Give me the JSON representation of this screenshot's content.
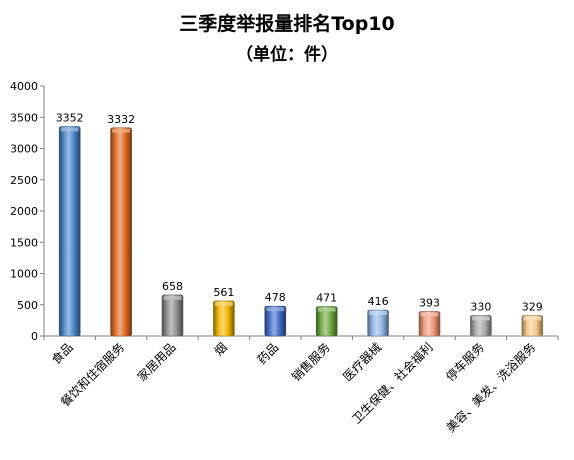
{
  "chart_data": {
    "type": "bar",
    "title": "三季度举报量排名Top10",
    "subtitle": "（单位：件）",
    "xlabel": "",
    "ylabel": "",
    "ylim": [
      0,
      4000
    ],
    "yticks": [
      0,
      500,
      1000,
      1500,
      2000,
      2500,
      3000,
      3500,
      4000
    ],
    "grid": false,
    "legend": "none",
    "categories": [
      "食品",
      "餐饮和住宿服务",
      "家居用品",
      "烟",
      "药品",
      "销售服务",
      "医疗器械",
      "卫生保健、社会福利",
      "停车服务",
      "美容、美发、洗浴服务"
    ],
    "values": [
      3352,
      3332,
      658,
      561,
      478,
      471,
      416,
      393,
      330,
      329
    ],
    "value_labels": [
      "3352",
      "3332",
      "658",
      "561",
      "478",
      "471",
      "416",
      "393",
      "330",
      "329"
    ],
    "colors": [
      "#4a86c8",
      "#e26b22",
      "#8c8c8c",
      "#f2b400",
      "#3f6cc8",
      "#6ea83e",
      "#8fb5e6",
      "#f0967a",
      "#a8a8a8",
      "#f4c886"
    ]
  }
}
